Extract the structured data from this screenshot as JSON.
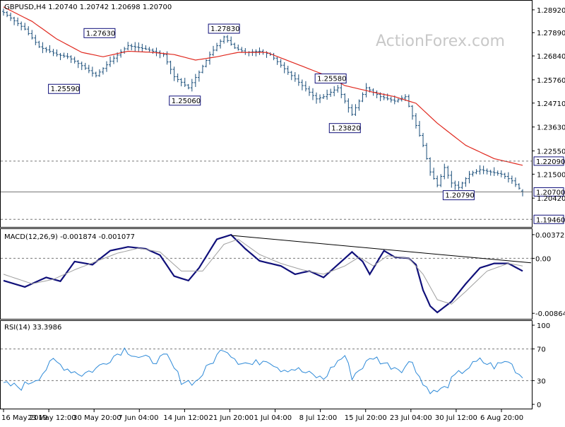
{
  "watermark": "ActionForex.com",
  "colors": {
    "price_bar": "#1a4e7a",
    "sma": "#e0281e",
    "macd_line": "#10107a",
    "macd_signal": "#a0a0a0",
    "rsi": "#2e8ad8",
    "label_border": "#10107a",
    "label_bg": "#ffffff",
    "dotted": "#777777"
  },
  "chart_data": [
    {
      "type": "ohlc",
      "title": "GBPUSD,H4  1.20740 1.20742 1.20698 1.20700",
      "symbol": "GBPUSD,H4",
      "last_bar": {
        "open": 1.2074,
        "high": 1.20742,
        "low": 1.20698,
        "close": 1.207
      },
      "ylim": [
        1.1915,
        1.293
      ],
      "y_ticks": [
        "1.28920",
        "1.27890",
        "1.26840",
        "1.25760",
        "1.24710",
        "1.23630",
        "1.22550",
        "1.21500",
        "1.20420"
      ],
      "x_ticks": [
        "16 May 2019",
        "23 May 12:00",
        "30 May 20:00",
        "7 Jun 04:00",
        "14 Jun 12:00",
        "21 Jun 20:00",
        "1 Jul 04:00",
        "8 Jul 12:00",
        "15 Jul 20:00",
        "23 Jul 04:00",
        "30 Jul 12:00",
        "6 Aug 20:00"
      ],
      "key_levels": [
        {
          "value": "1.22090",
          "style": "dashed"
        },
        {
          "value": "1.19460",
          "style": "dashed"
        },
        {
          "value": "1.20700",
          "style": "solid",
          "role": "current price"
        }
      ],
      "annotations": [
        {
          "label": "1.27630",
          "bar": 27,
          "value": 1.2763,
          "kind": "high"
        },
        {
          "label": "1.25590",
          "bar": 17,
          "value": 1.2559,
          "kind": "low"
        },
        {
          "label": "1.25060",
          "bar": 51,
          "value": 1.2506,
          "kind": "low"
        },
        {
          "label": "1.27830",
          "bar": 62,
          "value": 1.2783,
          "kind": "high"
        },
        {
          "label": "1.25580",
          "bar": 92,
          "value": 1.2558,
          "kind": "high"
        },
        {
          "label": "1.23820",
          "bar": 96,
          "value": 1.2382,
          "kind": "low"
        },
        {
          "label": "1.20790",
          "bar": 128,
          "value": 1.2079,
          "kind": "low"
        }
      ],
      "close_anchors": [
        [
          0,
          1.288
        ],
        [
          6,
          1.2805
        ],
        [
          10,
          1.2725
        ],
        [
          15,
          1.269
        ],
        [
          18,
          1.268
        ],
        [
          22,
          1.264
        ],
        [
          26,
          1.2595
        ],
        [
          30,
          1.266
        ],
        [
          35,
          1.273
        ],
        [
          40,
          1.2715
        ],
        [
          45,
          1.269
        ],
        [
          48,
          1.259
        ],
        [
          52,
          1.254
        ],
        [
          55,
          1.261
        ],
        [
          58,
          1.269
        ],
        [
          62,
          1.277
        ],
        [
          65,
          1.272
        ],
        [
          68,
          1.27
        ],
        [
          72,
          1.2705
        ],
        [
          75,
          1.269
        ],
        [
          80,
          1.261
        ],
        [
          84,
          1.255
        ],
        [
          88,
          1.249
        ],
        [
          90,
          1.25
        ],
        [
          94,
          1.254
        ],
        [
          96,
          1.248
        ],
        [
          98,
          1.242
        ],
        [
          102,
          1.254
        ],
        [
          106,
          1.25
        ],
        [
          110,
          1.248
        ],
        [
          113,
          1.25
        ],
        [
          116,
          1.237
        ],
        [
          118,
          1.228
        ],
        [
          120,
          1.216
        ],
        [
          122,
          1.21
        ],
        [
          124,
          1.218
        ],
        [
          126,
          1.211
        ],
        [
          128,
          1.209
        ],
        [
          131,
          1.215
        ],
        [
          134,
          1.217
        ],
        [
          137,
          1.216
        ],
        [
          140,
          1.215
        ],
        [
          143,
          1.212
        ],
        [
          146,
          1.207
        ]
      ],
      "sma_anchors": [
        [
          0,
          1.2905
        ],
        [
          8,
          1.284
        ],
        [
          15,
          1.276
        ],
        [
          22,
          1.27
        ],
        [
          28,
          1.268
        ],
        [
          35,
          1.2705
        ],
        [
          42,
          1.27
        ],
        [
          48,
          1.269
        ],
        [
          54,
          1.2665
        ],
        [
          60,
          1.268
        ],
        [
          66,
          1.27
        ],
        [
          74,
          1.27
        ],
        [
          82,
          1.265
        ],
        [
          90,
          1.26
        ],
        [
          96,
          1.255
        ],
        [
          104,
          1.252
        ],
        [
          110,
          1.25
        ],
        [
          116,
          1.247
        ],
        [
          122,
          1.238
        ],
        [
          130,
          1.228
        ],
        [
          138,
          1.222
        ],
        [
          146,
          1.219
        ]
      ],
      "bar_count": 147
    },
    {
      "type": "line",
      "title": "MACD(12,26,9) -0.001874 -0.001077",
      "ylim": [
        -0.0094,
        0.0046
      ],
      "y_ticks": [
        "0.003722",
        "0.00",
        "-0.008643"
      ],
      "series": [
        {
          "name": "MACD",
          "anchors": [
            [
              0,
              -0.0035
            ],
            [
              6,
              -0.0045
            ],
            [
              12,
              -0.003
            ],
            [
              16,
              -0.0036
            ],
            [
              20,
              -0.0005
            ],
            [
              25,
              -0.001
            ],
            [
              30,
              0.0012
            ],
            [
              35,
              0.0018
            ],
            [
              40,
              0.0015
            ],
            [
              44,
              0.0005
            ],
            [
              48,
              -0.0028
            ],
            [
              52,
              -0.0035
            ],
            [
              55,
              -0.0015
            ],
            [
              60,
              0.003
            ],
            [
              64,
              0.0037
            ],
            [
              68,
              0.0015
            ],
            [
              72,
              -0.0004
            ],
            [
              75,
              -0.0008
            ],
            [
              78,
              -0.0012
            ],
            [
              82,
              -0.0025
            ],
            [
              86,
              -0.002
            ],
            [
              88,
              -0.0025
            ],
            [
              90,
              -0.003
            ],
            [
              94,
              -0.001
            ],
            [
              98,
              0.001
            ],
            [
              101,
              -0.0005
            ],
            [
              103,
              -0.0025
            ],
            [
              107,
              0.0012
            ],
            [
              110,
              0.0002
            ],
            [
              114,
              0.0
            ],
            [
              116,
              -0.001
            ],
            [
              118,
              -0.005
            ],
            [
              120,
              -0.0075
            ],
            [
              122,
              -0.0085
            ],
            [
              126,
              -0.0068
            ],
            [
              130,
              -0.004
            ],
            [
              134,
              -0.0015
            ],
            [
              138,
              -0.0008
            ],
            [
              142,
              -0.0008
            ],
            [
              146,
              -0.002
            ]
          ]
        },
        {
          "name": "Signal",
          "anchors": [
            [
              0,
              -0.0025
            ],
            [
              8,
              -0.004
            ],
            [
              14,
              -0.0033
            ],
            [
              20,
              -0.0018
            ],
            [
              26,
              -0.0005
            ],
            [
              32,
              0.0008
            ],
            [
              38,
              0.0016
            ],
            [
              44,
              0.001
            ],
            [
              50,
              -0.002
            ],
            [
              56,
              -0.002
            ],
            [
              62,
              0.0022
            ],
            [
              66,
              0.003
            ],
            [
              72,
              0.0006
            ],
            [
              78,
              -0.0008
            ],
            [
              84,
              -0.0018
            ],
            [
              90,
              -0.0025
            ],
            [
              96,
              -0.0012
            ],
            [
              100,
              0.0002
            ],
            [
              104,
              -0.0012
            ],
            [
              108,
              0.0004
            ],
            [
              114,
              0.0
            ],
            [
              118,
              -0.0025
            ],
            [
              122,
              -0.0065
            ],
            [
              126,
              -0.0072
            ],
            [
              130,
              -0.0052
            ],
            [
              136,
              -0.002
            ],
            [
              142,
              -0.0008
            ],
            [
              146,
              -0.0012
            ]
          ]
        }
      ],
      "trendline": {
        "from": [
          64,
          0.0036
        ],
        "to": [
          146,
          -0.0006
        ]
      }
    },
    {
      "type": "line",
      "title": "RSI(14) 33.3986",
      "ylim": [
        0,
        100
      ],
      "y_ticks": [
        "100",
        "70",
        "30",
        "0"
      ],
      "levels": [
        70,
        30
      ],
      "series": [
        {
          "name": "RSI",
          "anchors": [
            [
              0,
              25
            ],
            [
              5,
              22
            ],
            [
              10,
              35
            ],
            [
              14,
              55
            ],
            [
              18,
              45
            ],
            [
              22,
              38
            ],
            [
              26,
              45
            ],
            [
              30,
              58
            ],
            [
              34,
              70
            ],
            [
              38,
              60
            ],
            [
              42,
              55
            ],
            [
              46,
              60
            ],
            [
              50,
              30
            ],
            [
              54,
              28
            ],
            [
              58,
              50
            ],
            [
              62,
              72
            ],
            [
              66,
              55
            ],
            [
              70,
              50
            ],
            [
              74,
              58
            ],
            [
              78,
              45
            ],
            [
              82,
              45
            ],
            [
              86,
              38
            ],
            [
              90,
              32
            ],
            [
              93,
              50
            ],
            [
              96,
              62
            ],
            [
              98,
              35
            ],
            [
              101,
              48
            ],
            [
              104,
              60
            ],
            [
              108,
              50
            ],
            [
              112,
              45
            ],
            [
              115,
              55
            ],
            [
              118,
              25
            ],
            [
              121,
              15
            ],
            [
              124,
              20
            ],
            [
              127,
              35
            ],
            [
              130,
              45
            ],
            [
              134,
              55
            ],
            [
              138,
              48
            ],
            [
              142,
              55
            ],
            [
              146,
              33
            ]
          ]
        }
      ]
    }
  ]
}
